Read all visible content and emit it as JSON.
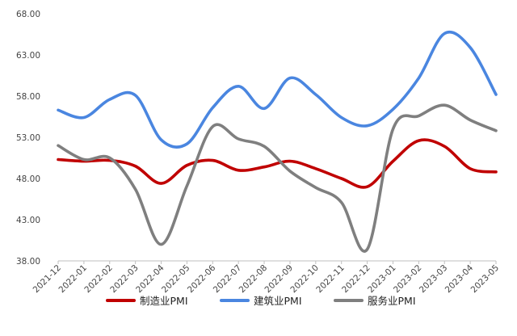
{
  "chart_data": {
    "type": "line",
    "title": "",
    "xlabel": "",
    "ylabel": "",
    "categories": [
      "2021-12",
      "2022-01",
      "2022-02",
      "2022-03",
      "2022-04",
      "2022-05",
      "2022-06",
      "2022-07",
      "2022-08",
      "2022-09",
      "2022-10",
      "2022-11",
      "2022-12",
      "2023-01",
      "2023-02",
      "2023-03",
      "2023-04",
      "2023-05"
    ],
    "ylim": [
      38,
      68
    ],
    "yticks": [
      "38.00",
      "43.00",
      "48.00",
      "53.00",
      "58.00",
      "63.00",
      "68.00"
    ],
    "grid": false,
    "legend_position": "bottom",
    "series": [
      {
        "name": "制造业PMI",
        "color": "#c00000",
        "values": [
          50.3,
          50.1,
          50.2,
          49.5,
          47.4,
          49.6,
          50.2,
          49.0,
          49.4,
          50.1,
          49.2,
          48.0,
          47.0,
          50.1,
          52.6,
          51.9,
          49.2,
          48.8
        ]
      },
      {
        "name": "建筑业PMI",
        "color": "#4a86e0",
        "values": [
          56.3,
          55.4,
          57.6,
          58.1,
          52.7,
          52.2,
          56.6,
          59.2,
          56.5,
          60.2,
          58.2,
          55.4,
          54.4,
          56.4,
          60.2,
          65.6,
          63.9,
          58.2
        ]
      },
      {
        "name": "服务业PMI",
        "color": "#7f7f7f",
        "values": [
          52.0,
          50.3,
          50.5,
          46.7,
          40.0,
          47.1,
          54.3,
          52.8,
          51.9,
          48.9,
          46.9,
          45.1,
          39.4,
          54.0,
          55.6,
          56.9,
          55.1,
          53.8
        ]
      }
    ]
  }
}
